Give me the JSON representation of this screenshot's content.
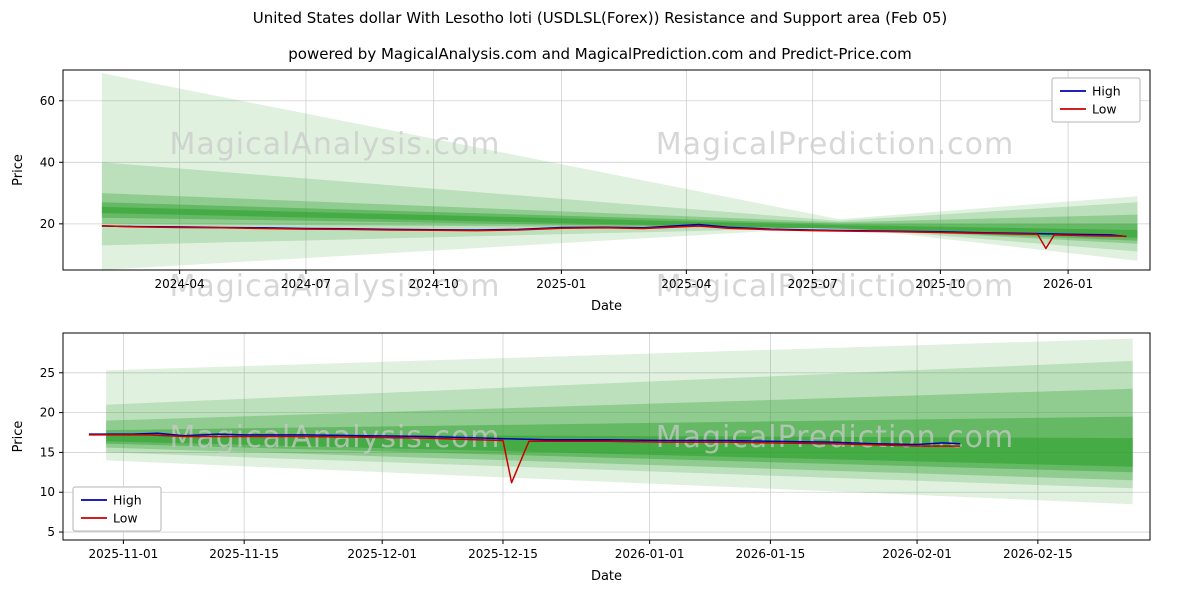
{
  "header": {
    "title": "United States dollar With Lesotho loti (USDLSL(Forex)) Resistance and Support area (Feb 05)",
    "subtitle": "powered by MagicalAnalysis.com and MagicalPrediction.com and Predict-Price.com"
  },
  "colors": {
    "high": "#0000b4",
    "low": "#cc0000",
    "band": "#2ca02c",
    "grid": "#d0d0d0",
    "watermark": "#c9c9c9"
  },
  "chart_data": [
    {
      "name": "long-term-history-chart",
      "type": "line",
      "xlabel": "Date",
      "ylabel": "Price",
      "xlim": [
        "2024-01-08",
        "2026-03-01"
      ],
      "ylim": [
        5,
        70
      ],
      "yticks": [
        20,
        40,
        60
      ],
      "xticks": [
        {
          "v": "2024-04-01",
          "label": "2024-04"
        },
        {
          "v": "2024-07-01",
          "label": "2024-07"
        },
        {
          "v": "2024-10-01",
          "label": "2024-10"
        },
        {
          "v": "2025-01-01",
          "label": "2025-01"
        },
        {
          "v": "2025-04-01",
          "label": "2025-04"
        },
        {
          "v": "2025-07-01",
          "label": "2025-07"
        },
        {
          "v": "2025-10-01",
          "label": "2025-10"
        },
        {
          "v": "2026-01-01",
          "label": "2026-01"
        }
      ],
      "legend_position": "top-right",
      "band_color": "#2ca02c",
      "bands": [
        {
          "opacity": 0.15,
          "pts": [
            [
              "2024-02-05",
              69
            ],
            [
              "2025-07-20",
              21.5
            ],
            [
              "2026-02-20",
              29
            ],
            [
              "2026-02-20",
              8
            ],
            [
              "2025-07-20",
              19
            ],
            [
              "2024-02-05",
              5
            ]
          ]
        },
        {
          "opacity": 0.2,
          "pts": [
            [
              "2024-02-05",
              40
            ],
            [
              "2025-07-20",
              21
            ],
            [
              "2026-02-20",
              27
            ],
            [
              "2026-02-20",
              11
            ],
            [
              "2025-07-20",
              18.8
            ],
            [
              "2024-02-05",
              13
            ]
          ]
        },
        {
          "opacity": 0.3,
          "pts": [
            [
              "2024-02-05",
              30
            ],
            [
              "2025-07-20",
              20.5
            ],
            [
              "2026-02-20",
              23
            ],
            [
              "2026-02-20",
              13.5
            ],
            [
              "2025-07-20",
              18.6
            ],
            [
              "2024-02-05",
              20
            ]
          ]
        },
        {
          "opacity": 0.42,
          "pts": [
            [
              "2024-02-05",
              27
            ],
            [
              "2025-07-20",
              20
            ],
            [
              "2026-02-20",
              20
            ],
            [
              "2026-02-20",
              14.5
            ],
            [
              "2025-07-20",
              18.4
            ],
            [
              "2024-02-05",
              22
            ]
          ]
        },
        {
          "opacity": 0.55,
          "pts": [
            [
              "2024-02-05",
              25.5
            ],
            [
              "2025-07-20",
              19.6
            ],
            [
              "2026-02-20",
              18
            ],
            [
              "2026-02-20",
              15.5
            ],
            [
              "2025-07-20",
              18.3
            ],
            [
              "2024-02-05",
              23.5
            ]
          ]
        }
      ],
      "series": [
        {
          "name": "High",
          "color": "#0000b4",
          "points": [
            [
              "2024-02-05",
              19.3
            ],
            [
              "2024-03-01",
              19.1
            ],
            [
              "2024-04-01",
              19.0
            ],
            [
              "2024-05-01",
              18.8
            ],
            [
              "2024-06-01",
              18.7
            ],
            [
              "2024-07-01",
              18.5
            ],
            [
              "2024-08-01",
              18.4
            ],
            [
              "2024-09-01",
              18.2
            ],
            [
              "2024-10-01",
              18.1
            ],
            [
              "2024-11-01",
              18.0
            ],
            [
              "2024-12-01",
              18.2
            ],
            [
              "2025-01-01",
              18.8
            ],
            [
              "2025-02-01",
              18.9
            ],
            [
              "2025-03-01",
              18.7
            ],
            [
              "2025-04-10",
              19.8
            ],
            [
              "2025-05-01",
              18.9
            ],
            [
              "2025-06-01",
              18.3
            ],
            [
              "2025-07-01",
              18.0
            ],
            [
              "2025-08-01",
              17.8
            ],
            [
              "2025-09-01",
              17.6
            ],
            [
              "2025-10-01",
              17.4
            ],
            [
              "2025-11-01",
              17.1
            ],
            [
              "2025-12-01",
              16.9
            ],
            [
              "2026-01-01",
              16.6
            ],
            [
              "2026-02-01",
              16.4
            ],
            [
              "2026-02-12",
              15.9
            ]
          ]
        },
        {
          "name": "Low",
          "color": "#cc0000",
          "points": [
            [
              "2024-02-05",
              19.4
            ],
            [
              "2024-03-01",
              19.0
            ],
            [
              "2024-04-01",
              18.8
            ],
            [
              "2024-05-01",
              18.7
            ],
            [
              "2024-06-01",
              18.5
            ],
            [
              "2024-07-01",
              18.3
            ],
            [
              "2024-08-01",
              18.2
            ],
            [
              "2024-09-01",
              18.0
            ],
            [
              "2024-10-01",
              17.9
            ],
            [
              "2024-11-01",
              17.8
            ],
            [
              "2024-12-01",
              18.0
            ],
            [
              "2025-01-01",
              18.6
            ],
            [
              "2025-02-01",
              18.7
            ],
            [
              "2025-03-01",
              18.5
            ],
            [
              "2025-04-10",
              19.3
            ],
            [
              "2025-05-01",
              18.6
            ],
            [
              "2025-06-01",
              18.1
            ],
            [
              "2025-07-01",
              17.8
            ],
            [
              "2025-08-01",
              17.6
            ],
            [
              "2025-09-01",
              17.4
            ],
            [
              "2025-10-01",
              17.2
            ],
            [
              "2025-11-01",
              16.9
            ],
            [
              "2025-12-10",
              16.6
            ],
            [
              "2025-12-16",
              12.0
            ],
            [
              "2025-12-22",
              16.4
            ],
            [
              "2026-01-15",
              16.1
            ],
            [
              "2026-02-12",
              16.0
            ]
          ]
        }
      ],
      "watermarks": [
        {
          "text": "MagicalAnalysis.com",
          "fx": 0.25,
          "fy": 0.42
        },
        {
          "text": "MagicalPrediction.com",
          "fx": 0.71,
          "fy": 0.42
        },
        {
          "text": "MagicalAnalysis.com",
          "fx": 0.25,
          "fy": 1.13
        },
        {
          "text": "MagicalPrediction.com",
          "fx": 0.71,
          "fy": 1.13
        }
      ]
    },
    {
      "name": "recent-forecast-chart",
      "type": "line",
      "xlabel": "Date",
      "ylabel": "Price",
      "xlim": [
        "2025-10-25",
        "2026-02-28"
      ],
      "ylim": [
        4,
        30
      ],
      "yticks": [
        5,
        10,
        15,
        20,
        25
      ],
      "xticks": [
        {
          "v": "2025-11-01",
          "label": "2025-11-01"
        },
        {
          "v": "2025-11-15",
          "label": "2025-11-15"
        },
        {
          "v": "2025-12-01",
          "label": "2025-12-01"
        },
        {
          "v": "2025-12-15",
          "label": "2025-12-15"
        },
        {
          "v": "2026-01-01",
          "label": "2026-01-01"
        },
        {
          "v": "2026-01-15",
          "label": "2026-01-15"
        },
        {
          "v": "2026-02-01",
          "label": "2026-02-01"
        },
        {
          "v": "2026-02-15",
          "label": "2026-02-15"
        }
      ],
      "legend_position": "bottom-left",
      "band_color": "#2ca02c",
      "bands": [
        {
          "opacity": 0.15,
          "pts": [
            [
              "2025-10-30",
              25.3
            ],
            [
              "2026-02-26",
              29.3
            ],
            [
              "2026-02-26",
              8.5
            ],
            [
              "2025-10-30",
              14
            ]
          ]
        },
        {
          "opacity": 0.2,
          "pts": [
            [
              "2025-10-30",
              21
            ],
            [
              "2026-02-26",
              26.5
            ],
            [
              "2026-02-26",
              10.5
            ],
            [
              "2025-10-30",
              15
            ]
          ]
        },
        {
          "opacity": 0.3,
          "pts": [
            [
              "2025-10-30",
              19
            ],
            [
              "2026-02-26",
              23
            ],
            [
              "2026-02-26",
              11.5
            ],
            [
              "2025-10-30",
              15.6
            ]
          ]
        },
        {
          "opacity": 0.42,
          "pts": [
            [
              "2025-10-30",
              17.8
            ],
            [
              "2026-02-26",
              19.5
            ],
            [
              "2026-02-26",
              12.5
            ],
            [
              "2025-10-30",
              16.1
            ]
          ]
        },
        {
          "opacity": 0.55,
          "pts": [
            [
              "2025-10-30",
              17.3
            ],
            [
              "2026-02-26",
              16.8
            ],
            [
              "2026-02-26",
              13.2
            ],
            [
              "2025-10-30",
              16.4
            ]
          ]
        }
      ],
      "series": [
        {
          "name": "High",
          "color": "#0000b4",
          "points": [
            [
              "2025-10-28",
              17.3
            ],
            [
              "2025-11-02",
              17.3
            ],
            [
              "2025-11-05",
              17.4
            ],
            [
              "2025-11-08",
              17.1
            ],
            [
              "2025-11-12",
              17.3
            ],
            [
              "2025-11-15",
              17.2
            ],
            [
              "2025-11-22",
              17.2
            ],
            [
              "2025-11-29",
              17.1
            ],
            [
              "2025-12-06",
              17.0
            ],
            [
              "2025-12-13",
              16.8
            ],
            [
              "2025-12-16",
              16.7
            ],
            [
              "2025-12-20",
              16.6
            ],
            [
              "2025-12-27",
              16.6
            ],
            [
              "2026-01-03",
              16.5
            ],
            [
              "2026-01-10",
              16.5
            ],
            [
              "2026-01-15",
              16.4
            ],
            [
              "2026-01-22",
              16.3
            ],
            [
              "2026-01-27",
              16.1
            ],
            [
              "2026-02-01",
              16.0
            ],
            [
              "2026-02-04",
              16.2
            ],
            [
              "2026-02-06",
              16.1
            ]
          ]
        },
        {
          "name": "Low",
          "color": "#cc0000",
          "points": [
            [
              "2025-10-28",
              17.2
            ],
            [
              "2025-11-04",
              17.2
            ],
            [
              "2025-11-08",
              17.0
            ],
            [
              "2025-11-15",
              17.0
            ],
            [
              "2025-11-22",
              17.0
            ],
            [
              "2025-11-29",
              16.9
            ],
            [
              "2025-12-06",
              16.8
            ],
            [
              "2025-12-12",
              16.6
            ],
            [
              "2025-12-15",
              16.5
            ],
            [
              "2025-12-16",
              11.2
            ],
            [
              "2025-12-18",
              16.4
            ],
            [
              "2025-12-27",
              16.4
            ],
            [
              "2026-01-03",
              16.3
            ],
            [
              "2026-01-10",
              16.3
            ],
            [
              "2026-01-15",
              16.2
            ],
            [
              "2026-01-22",
              16.1
            ],
            [
              "2026-01-29",
              15.9
            ],
            [
              "2026-02-02",
              15.8
            ],
            [
              "2026-02-06",
              15.8
            ]
          ]
        }
      ],
      "watermarks": [
        {
          "text": "MagicalAnalysis.com",
          "fx": 0.25,
          "fy": 0.55
        },
        {
          "text": "MagicalPrediction.com",
          "fx": 0.71,
          "fy": 0.55
        }
      ]
    }
  ]
}
